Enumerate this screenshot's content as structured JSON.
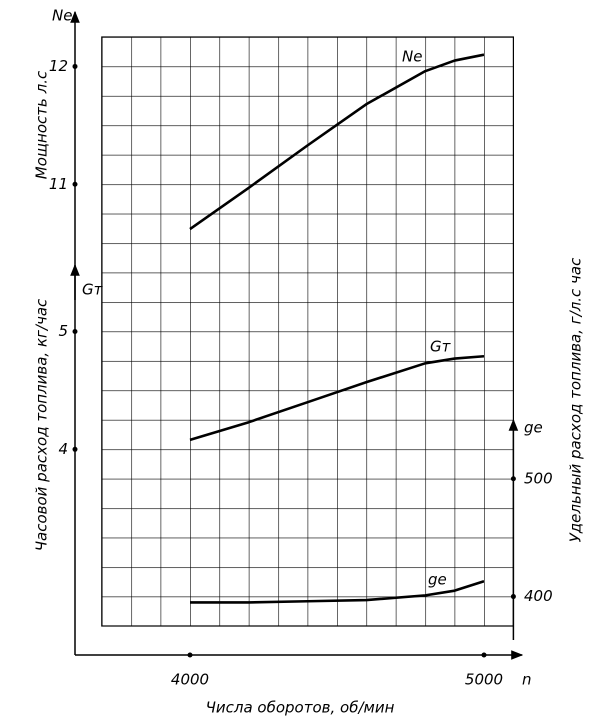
{
  "chart_data": {
    "type": "line",
    "x": [
      4000,
      4200,
      4400,
      4600,
      4800,
      4900,
      5000
    ],
    "xlim": [
      3700,
      5100
    ],
    "xticks": [
      4000,
      5000
    ],
    "xlabel": "Числа оборотов, об/мин",
    "xsymbol": "n",
    "ylim": [
      7.25,
      12.25
    ],
    "yticks": [
      11,
      12
    ],
    "ylabel": "Мощность л.с",
    "y2lim": [
      2.5,
      7.5
    ],
    "y2ticks": [
      4,
      5
    ],
    "y2label": "Часовой расход топлива, кг/час",
    "y3lim": [
      375,
      875
    ],
    "y3ticks": [
      400,
      500
    ],
    "y3label": "Удельный расход топлива, г/л.с час",
    "grid": true,
    "series": [
      {
        "name": "Ne",
        "color": "#000000",
        "axis": "y",
        "values": [
          10.62,
          10.97,
          11.33,
          11.68,
          11.96,
          12.05,
          12.1
        ]
      },
      {
        "name": "Gт",
        "color": "#000000",
        "axis": "y2",
        "values": [
          4.08,
          4.23,
          4.4,
          4.57,
          4.73,
          4.77,
          4.79
        ]
      },
      {
        "name": "ge",
        "color": "#000000",
        "axis": "y3",
        "values": [
          395,
          395,
          396,
          397,
          401,
          405,
          413
        ]
      }
    ]
  }
}
